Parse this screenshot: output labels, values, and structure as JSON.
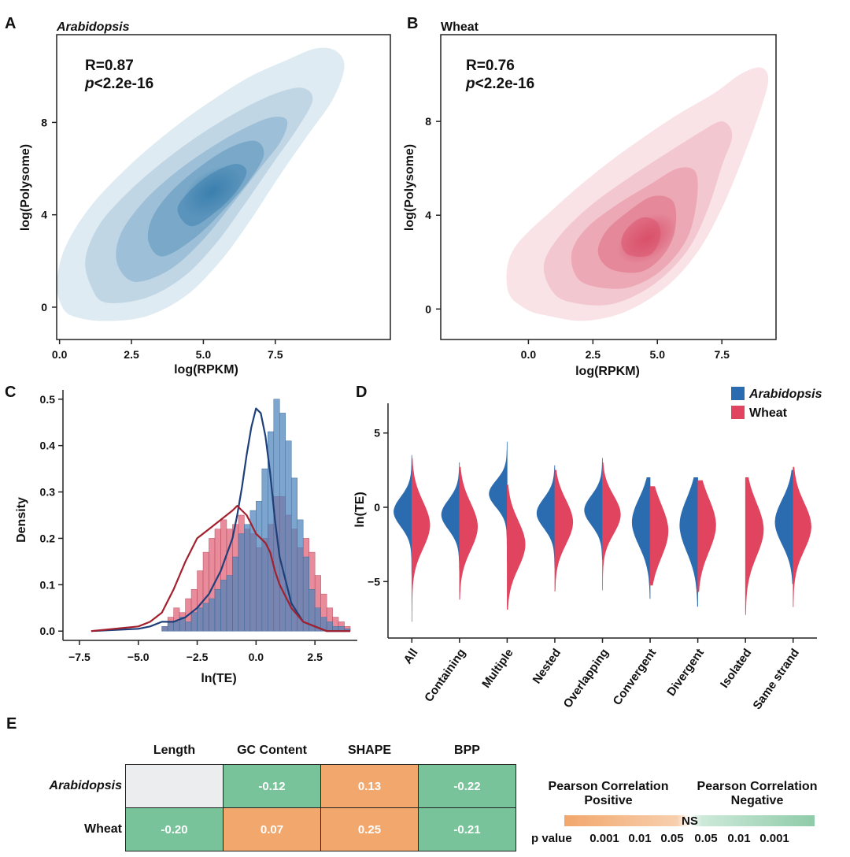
{
  "panels": {
    "a": {
      "label": "A",
      "title": "Arabidopsis",
      "r": "R=0.87",
      "p_prefix": "p",
      "p_rest": "<2.2e-16",
      "xlabel": "log(RPKM)",
      "ylabel": "log(Polysome)",
      "xticks": [
        "0.0",
        "2.5",
        "5.0",
        "7.5"
      ],
      "yticks": [
        "0",
        "4",
        "8"
      ],
      "color": "#3a7fae"
    },
    "b": {
      "label": "B",
      "title": "Wheat",
      "r": "R=0.76",
      "p_prefix": "p",
      "p_rest": "<2.2e-16",
      "xlabel": "log(RPKM)",
      "ylabel": "log(Polysome)",
      "xticks": [
        "0.0",
        "2.5",
        "5.0",
        "7.5"
      ],
      "yticks": [
        "0",
        "4",
        "8"
      ],
      "color": "#d9506a"
    },
    "c": {
      "label": "C",
      "xlabel": "ln(TE)",
      "ylabel": "Density",
      "xticks": [
        "−7.5",
        "−5.0",
        "−2.5",
        "0.0",
        "2.5"
      ],
      "yticks": [
        "0.0",
        "0.1",
        "0.2",
        "0.3",
        "0.4",
        "0.5"
      ]
    },
    "d": {
      "label": "D",
      "ylabel": "ln(TE)",
      "yticks": [
        "5",
        "0",
        "−5"
      ],
      "legend": [
        "Arabidopsis",
        "Wheat"
      ]
    },
    "e": {
      "label": "E"
    }
  },
  "colors": {
    "arabidopsis": "#2b6cb0",
    "wheat": "#e0445f",
    "positive": "#f2a76c",
    "negative": "#79c39b",
    "na": "#ecedee"
  },
  "chart_data": [
    {
      "type": "scatter",
      "panel": "A",
      "title": "Arabidopsis",
      "subtitle": "R=0.87, p<2.2e-16",
      "xlabel": "log(RPKM)",
      "ylabel": "log(Polysome)",
      "xlim": [
        -0.1,
        11.5
      ],
      "ylim": [
        -1.4,
        11.8
      ],
      "kde_center": [
        5.3,
        5.0
      ],
      "contours": [
        {
          "level": 1,
          "points": [
            [
              0.5,
              -0.4
            ],
            [
              1.5,
              -0.6
            ],
            [
              3.0,
              -0.4
            ],
            [
              4.4,
              0.5
            ],
            [
              5.6,
              2.0
            ],
            [
              6.6,
              3.7
            ],
            [
              7.6,
              5.6
            ],
            [
              8.6,
              7.4
            ],
            [
              9.5,
              9.0
            ],
            [
              9.9,
              10.4
            ],
            [
              9.6,
              11.1
            ],
            [
              8.9,
              11.2
            ],
            [
              7.9,
              10.7
            ],
            [
              6.5,
              9.9
            ],
            [
              5.0,
              8.7
            ],
            [
              3.7,
              7.5
            ],
            [
              2.4,
              6.1
            ],
            [
              1.1,
              4.4
            ],
            [
              0.2,
              2.6
            ],
            [
              -0.1,
              1.0
            ],
            [
              0.1,
              0.0
            ]
          ]
        },
        {
          "level": 2,
          "points": [
            [
              1.6,
              0.2
            ],
            [
              3.0,
              0.4
            ],
            [
              4.3,
              1.3
            ],
            [
              5.4,
              2.7
            ],
            [
              6.4,
              4.4
            ],
            [
              7.4,
              6.2
            ],
            [
              8.3,
              7.8
            ],
            [
              8.8,
              9.0
            ],
            [
              8.4,
              9.5
            ],
            [
              7.4,
              9.2
            ],
            [
              6.1,
              8.4
            ],
            [
              4.8,
              7.4
            ],
            [
              3.6,
              6.3
            ],
            [
              2.4,
              5.0
            ],
            [
              1.4,
              3.6
            ],
            [
              0.9,
              2.1
            ],
            [
              1.1,
              0.9
            ]
          ]
        },
        {
          "level": 3,
          "points": [
            [
              2.6,
              1.1
            ],
            [
              3.8,
              1.6
            ],
            [
              4.9,
              2.8
            ],
            [
              5.9,
              4.3
            ],
            [
              6.9,
              5.9
            ],
            [
              7.7,
              7.2
            ],
            [
              7.9,
              8.1
            ],
            [
              7.3,
              8.2
            ],
            [
              6.2,
              7.6
            ],
            [
              5.0,
              6.7
            ],
            [
              3.8,
              5.6
            ],
            [
              2.8,
              4.4
            ],
            [
              2.1,
              3.1
            ],
            [
              2.0,
              1.9
            ]
          ]
        },
        {
          "level": 4,
          "points": [
            [
              3.6,
              2.2
            ],
            [
              4.7,
              3.0
            ],
            [
              5.7,
              4.2
            ],
            [
              6.6,
              5.5
            ],
            [
              7.1,
              6.6
            ],
            [
              6.8,
              7.2
            ],
            [
              5.9,
              6.9
            ],
            [
              4.8,
              6.0
            ],
            [
              3.8,
              4.9
            ],
            [
              3.2,
              3.8
            ],
            [
              3.1,
              2.8
            ]
          ]
        },
        {
          "level": 5,
          "points": [
            [
              4.6,
              3.5
            ],
            [
              5.5,
              4.2
            ],
            [
              6.2,
              5.1
            ],
            [
              6.5,
              5.9
            ],
            [
              6.1,
              6.2
            ],
            [
              5.3,
              5.8
            ],
            [
              4.5,
              5.0
            ],
            [
              4.1,
              4.2
            ]
          ]
        }
      ]
    },
    {
      "type": "scatter",
      "panel": "B",
      "title": "Wheat",
      "subtitle": "R=0.76, p<2.2e-16",
      "xlabel": "log(RPKM)",
      "ylabel": "log(Polysome)",
      "xlim": [
        -3.4,
        9.6
      ],
      "ylim": [
        -1.3,
        11.7
      ],
      "kde_center": [
        4.6,
        3.0
      ],
      "contours": [
        {
          "level": 1,
          "points": [
            [
              0.8,
              -0.3
            ],
            [
              2.2,
              -0.5
            ],
            [
              3.8,
              -0.1
            ],
            [
              5.4,
              1.0
            ],
            [
              6.6,
              2.5
            ],
            [
              7.5,
              4.3
            ],
            [
              8.3,
              6.4
            ],
            [
              9.0,
              8.5
            ],
            [
              9.3,
              9.8
            ],
            [
              9.0,
              10.3
            ],
            [
              8.2,
              10.0
            ],
            [
              7.2,
              9.2
            ],
            [
              5.8,
              8.3
            ],
            [
              4.3,
              7.2
            ],
            [
              2.7,
              5.9
            ],
            [
              1.0,
              4.3
            ],
            [
              -0.6,
              2.5
            ],
            [
              -0.8,
              0.8
            ],
            [
              -0.1,
              0.0
            ]
          ]
        },
        {
          "level": 2,
          "points": [
            [
              1.6,
              0.3
            ],
            [
              3.2,
              0.2
            ],
            [
              4.8,
              1.0
            ],
            [
              6.1,
              2.4
            ],
            [
              6.9,
              4.1
            ],
            [
              7.5,
              6.1
            ],
            [
              7.9,
              7.4
            ],
            [
              7.5,
              8.0
            ],
            [
              6.6,
              7.5
            ],
            [
              5.3,
              6.6
            ],
            [
              3.9,
              5.6
            ],
            [
              2.4,
              4.4
            ],
            [
              1.2,
              3.1
            ],
            [
              0.6,
              1.9
            ],
            [
              0.9,
              0.8
            ]
          ]
        },
        {
          "level": 3,
          "points": [
            [
              2.4,
              1.0
            ],
            [
              3.8,
              0.9
            ],
            [
              5.1,
              1.6
            ],
            [
              6.1,
              2.9
            ],
            [
              6.5,
              4.4
            ],
            [
              6.5,
              5.8
            ],
            [
              5.8,
              6.0
            ],
            [
              4.7,
              5.3
            ],
            [
              3.5,
              4.5
            ],
            [
              2.3,
              3.5
            ],
            [
              1.7,
              2.5
            ],
            [
              1.8,
              1.5
            ]
          ]
        },
        {
          "level": 4,
          "points": [
            [
              3.2,
              1.7
            ],
            [
              4.4,
              1.6
            ],
            [
              5.3,
              2.4
            ],
            [
              5.7,
              3.5
            ],
            [
              5.6,
              4.6
            ],
            [
              4.8,
              4.8
            ],
            [
              3.8,
              4.1
            ],
            [
              3.0,
              3.3
            ],
            [
              2.7,
              2.4
            ]
          ]
        },
        {
          "level": 5,
          "points": [
            [
              3.9,
              2.3
            ],
            [
              4.7,
              2.3
            ],
            [
              5.1,
              3.0
            ],
            [
              5.0,
              3.7
            ],
            [
              4.4,
              3.9
            ],
            [
              3.8,
              3.4
            ],
            [
              3.6,
              2.8
            ]
          ]
        }
      ]
    },
    {
      "type": "bar",
      "panel": "C",
      "xlabel": "ln(TE)",
      "ylabel": "Density",
      "xlim": [
        -8.2,
        4.3
      ],
      "ylim": [
        -0.02,
        0.52
      ],
      "bin_width": 0.25,
      "series": [
        {
          "name": "Wheat",
          "bin_start": -4.0,
          "values": [
            0.01,
            0.03,
            0.05,
            0.04,
            0.07,
            0.09,
            0.13,
            0.17,
            0.2,
            0.22,
            0.24,
            0.22,
            0.23,
            0.25,
            0.22,
            0.21,
            0.18,
            0.2,
            0.23,
            0.29,
            0.29,
            0.25,
            0.22,
            0.18,
            0.2,
            0.17,
            0.12,
            0.08,
            0.05,
            0.03,
            0.02,
            0.01
          ]
        },
        {
          "name": "Arabidopsis",
          "bin_start": -4.0,
          "values": [
            0.01,
            0.02,
            0.02,
            0.03,
            0.02,
            0.04,
            0.05,
            0.06,
            0.07,
            0.09,
            0.11,
            0.12,
            0.16,
            0.21,
            0.23,
            0.26,
            0.28,
            0.35,
            0.43,
            0.5,
            0.47,
            0.41,
            0.33,
            0.24,
            0.16,
            0.09,
            0.05,
            0.03,
            0.02,
            0.01,
            0.01,
            0.005
          ]
        }
      ],
      "kde": [
        {
          "name": "Arabidopsis",
          "x": [
            -7.0,
            -5.0,
            -4.5,
            -4.0,
            -3.5,
            -3.0,
            -2.5,
            -2.0,
            -1.5,
            -1.0,
            -0.8,
            -0.6,
            -0.4,
            -0.2,
            0.0,
            0.2,
            0.4,
            0.6,
            0.8,
            1.0,
            1.5,
            2.0,
            2.5,
            3.0,
            4.0
          ],
          "y": [
            0.0,
            0.005,
            0.01,
            0.02,
            0.02,
            0.03,
            0.05,
            0.08,
            0.13,
            0.2,
            0.25,
            0.31,
            0.38,
            0.44,
            0.48,
            0.47,
            0.42,
            0.34,
            0.24,
            0.16,
            0.06,
            0.02,
            0.01,
            0.0,
            0.0
          ]
        },
        {
          "name": "Wheat",
          "x": [
            -7.0,
            -5.0,
            -4.5,
            -4.0,
            -3.5,
            -3.0,
            -2.5,
            -2.0,
            -1.5,
            -1.0,
            -0.8,
            -0.6,
            -0.4,
            -0.2,
            0.0,
            0.2,
            0.4,
            0.6,
            0.8,
            1.0,
            1.5,
            2.0,
            2.5,
            3.0,
            4.0
          ],
          "y": [
            0.0,
            0.01,
            0.02,
            0.04,
            0.09,
            0.15,
            0.2,
            0.22,
            0.24,
            0.26,
            0.27,
            0.26,
            0.25,
            0.23,
            0.21,
            0.2,
            0.19,
            0.17,
            0.13,
            0.1,
            0.05,
            0.02,
            0.01,
            0.0,
            0.0
          ]
        }
      ]
    },
    {
      "type": "violin",
      "panel": "D",
      "ylabel": "ln(TE)",
      "ylim": [
        -8.8,
        7.0
      ],
      "categories": [
        "All",
        "Containing",
        "Multiple",
        "Nested",
        "Overlapping",
        "Convergent",
        "Divergent",
        "Isolated",
        "Same strand"
      ],
      "series": [
        {
          "name": "Arabidopsis",
          "side": "left",
          "modes": [
            [
              -0.3,
              1.0
            ],
            [
              -0.5,
              1.0
            ],
            [
              0.9,
              0.9
            ],
            [
              -0.4,
              1.0
            ],
            [
              -0.2,
              1.0
            ],
            [
              -1.0,
              1.6
            ],
            [
              -1.2,
              1.8
            ],
            null,
            [
              -1.0,
              1.5
            ]
          ],
          "tails": [
            [
              -4.5,
              3.8
            ],
            [
              -4.2,
              3.5
            ],
            [
              -3.8,
              3.5
            ],
            [
              -4.0,
              3.2
            ],
            [
              -3.5,
              3.5
            ],
            [
              -6.0,
              3.0
            ],
            [
              -6.5,
              3.2
            ],
            null,
            [
              -5.0,
              3.5
            ]
          ]
        },
        {
          "name": "Wheat",
          "side": "right",
          "modes": [
            [
              -1.2,
              1.6
            ],
            [
              -1.3,
              1.6
            ],
            [
              -2.5,
              1.6
            ],
            [
              -1.0,
              1.5
            ],
            [
              -0.5,
              1.3
            ],
            [
              -1.6,
              1.8
            ],
            [
              -1.2,
              1.8
            ],
            [
              -1.5,
              1.8
            ],
            [
              -1.3,
              1.6
            ]
          ],
          "tails": [
            [
              -7.5,
              4.5
            ],
            [
              -6.0,
              4.0
            ],
            [
              -6.5,
              4.0
            ],
            [
              -5.5,
              3.5
            ],
            [
              -5.5,
              3.5
            ],
            [
              -5.0,
              3.0
            ],
            [
              -5.5,
              3.0
            ],
            [
              -7.0,
              3.5
            ],
            [
              -6.5,
              4.0
            ]
          ]
        }
      ]
    },
    {
      "type": "heatmap",
      "panel": "E",
      "columns": [
        "Length",
        "GC Content",
        "SHAPE",
        "BPP"
      ],
      "rows": [
        "Arabidopsis",
        "Wheat"
      ],
      "values": [
        [
          "",
          "-0.12",
          "0.13",
          "-0.22"
        ],
        [
          "-0.20",
          "0.07",
          "0.25",
          "-0.21"
        ]
      ],
      "legend": {
        "positive_title": "Pearson Correlation Positive",
        "negative_title": "Pearson Correlation Negative",
        "p_label": "p value",
        "p_values": [
          "0.001",
          "0.01",
          "0.05",
          "0.05",
          "0.01",
          "0.001"
        ],
        "ns_label": "NS"
      }
    }
  ]
}
